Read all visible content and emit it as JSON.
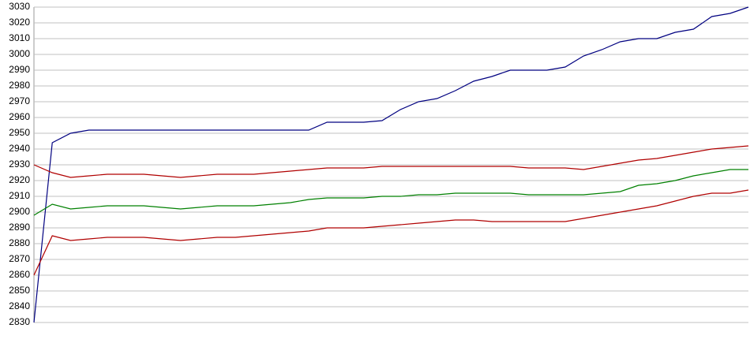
{
  "chart_data": {
    "type": "line",
    "categories": [
      null,
      null,
      null,
      null,
      null,
      null,
      null,
      null,
      null,
      null,
      null,
      null,
      null,
      null,
      null,
      null,
      null,
      null,
      null,
      null,
      null,
      null,
      null,
      null,
      null,
      null,
      null,
      null,
      null,
      null,
      null,
      null,
      null,
      null,
      null,
      null,
      null,
      null,
      null,
      null
    ],
    "series": [
      {
        "color": "#000080",
        "values": [
          2830,
          2944,
          2950,
          2952,
          2952,
          2952,
          2952,
          2952,
          2952,
          2952,
          2952,
          2952,
          2952,
          2952,
          2952,
          2952,
          2957,
          2957,
          2957,
          2958,
          2965,
          2970,
          2972,
          2977,
          2983,
          2986,
          2990,
          2990,
          2990,
          2992,
          2999,
          3003,
          3008,
          3010,
          3010,
          3014,
          3016,
          3024,
          3026,
          3030
        ]
      },
      {
        "color": "#008000",
        "values": [
          2898,
          2905,
          2902,
          2903,
          2904,
          2904,
          2904,
          2903,
          2902,
          2903,
          2904,
          2904,
          2904,
          2905,
          2906,
          2908,
          2909,
          2909,
          2909,
          2910,
          2910,
          2911,
          2911,
          2912,
          2912,
          2912,
          2912,
          2911,
          2911,
          2911,
          2911,
          2912,
          2913,
          2917,
          2918,
          2920,
          2923,
          2925,
          2927,
          2927
        ]
      },
      {
        "color": "#b00000",
        "values": [
          2930,
          2925,
          2922,
          2923,
          2924,
          2924,
          2924,
          2923,
          2922,
          2923,
          2924,
          2924,
          2924,
          2925,
          2926,
          2927,
          2928,
          2928,
          2928,
          2929,
          2929,
          2929,
          2929,
          2929,
          2929,
          2929,
          2929,
          2928,
          2928,
          2928,
          2927,
          2929,
          2931,
          2933,
          2934,
          2936,
          2938,
          2940,
          2941,
          2942
        ]
      },
      {
        "color": "#b00000",
        "values": [
          2860,
          2885,
          2882,
          2883,
          2884,
          2884,
          2884,
          2883,
          2882,
          2883,
          2884,
          2884,
          2885,
          2886,
          2887,
          2888,
          2890,
          2890,
          2890,
          2891,
          2892,
          2893,
          2894,
          2895,
          2895,
          2894,
          2894,
          2894,
          2894,
          2894,
          2896,
          2898,
          2900,
          2902,
          2904,
          2907,
          2910,
          2912,
          2912,
          2914
        ]
      }
    ],
    "ylim": [
      2830,
      3030
    ],
    "yticks": [
      2830,
      2840,
      2850,
      2860,
      2870,
      2880,
      2890,
      2900,
      2910,
      2920,
      2930,
      2940,
      2950,
      2960,
      2970,
      2980,
      2990,
      3000,
      3010,
      3020,
      3030
    ],
    "grid": true
  }
}
